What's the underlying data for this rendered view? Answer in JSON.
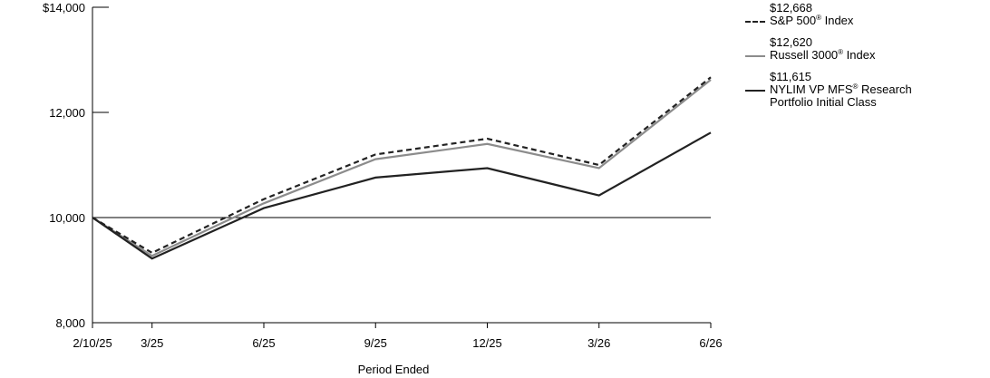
{
  "chart_data": {
    "type": "line",
    "xlabel": "Period Ended",
    "ylabel": "",
    "ylim": [
      8000,
      14000
    ],
    "categories": [
      "2/10/25",
      "3/25",
      "6/25",
      "9/25",
      "12/25",
      "3/26",
      "6/26"
    ],
    "x_months": [
      0,
      1.6,
      4.6,
      7.6,
      10.6,
      13.6,
      16.6
    ],
    "y_ticks": [
      8000,
      10000,
      12000,
      14000
    ],
    "y_tick_labels": [
      "8,000",
      "10,000",
      "12,000",
      "$14,000"
    ],
    "reference_line": 10000,
    "series": [
      {
        "name": "S&P 500® Index",
        "name_main": "S&P 500",
        "name_suffix": " Index",
        "final_value_label": "$12,668",
        "color": "#222222",
        "style": "dashed",
        "values": [
          10000,
          9330,
          10350,
          11200,
          11500,
          11000,
          12668
        ]
      },
      {
        "name": "Russell 3000® Index",
        "name_main": "Russell 3000",
        "name_suffix": " Index",
        "final_value_label": "$12,620",
        "color": "#8c8c8c",
        "style": "solid",
        "values": [
          10000,
          9270,
          10270,
          11110,
          11400,
          10940,
          12620
        ]
      },
      {
        "name": "NYLIM VP MFS® Research Portfolio Initial Class",
        "name_main": "NYLIM VP MFS",
        "name_suffix": " Research Portfolio Initial Class",
        "final_value_label": "$11,615",
        "color": "#222222",
        "style": "solid",
        "values": [
          10000,
          9220,
          10180,
          10760,
          10940,
          10420,
          11615
        ]
      }
    ],
    "legend_position": "right",
    "grid": false
  }
}
